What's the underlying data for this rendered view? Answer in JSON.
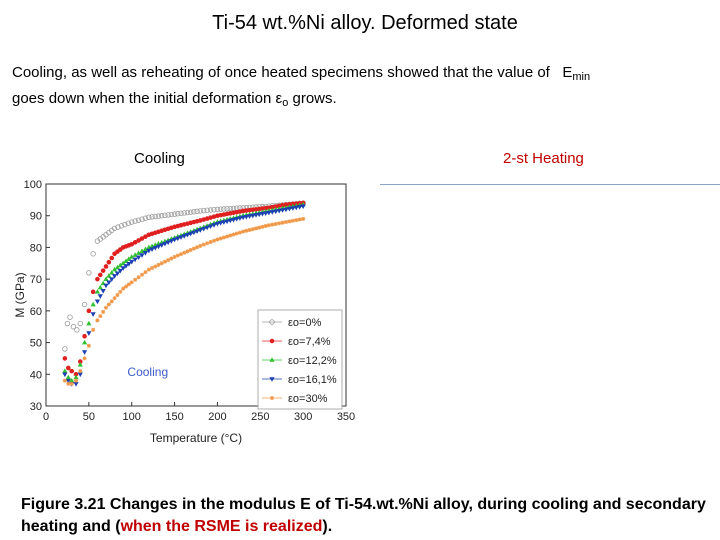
{
  "header": {
    "title": "Ti-54 wt.%Ni  alloy. Deformed  state"
  },
  "intro": {
    "line1_text": "Cooling, as well as reheating of once heated specimens  showed that the value of",
    "line1_symbol": "E",
    "line1_sub": "min",
    "line2_text": "goes down when the initial deformation",
    "line2_symbol": "ε",
    "line2_sub": "o",
    "line2_end": "grows."
  },
  "labels": {
    "cooling": "Cooling",
    "heating": "2-st Heating"
  },
  "caption": {
    "part1": "Figure 3.21 Changes in the modulus E of Ti-54.wt.%Ni alloy,  during cooling and secondary heating and (",
    "highlight": "when the RSME is realized",
    "part2": ")."
  },
  "colors": {
    "accent_red": "#c00000",
    "divider": "#8aa4c6"
  },
  "chart_data": {
    "type": "scatter",
    "title": "",
    "xlabel": "Temperature (°C)",
    "ylabel": "M (GPa)",
    "xlim": [
      0,
      350
    ],
    "ylim": [
      30,
      100
    ],
    "x_ticks": [
      "0",
      "50",
      "100",
      "150",
      "200",
      "250",
      "300",
      "350"
    ],
    "y_ticks": [
      "30",
      "40",
      "50",
      "60",
      "70",
      "80",
      "90",
      "100"
    ],
    "annotation": "Cooling",
    "legend_position": "bottom-right",
    "series": [
      {
        "name": "εo=0%",
        "legend_symbol": "εo",
        "legend_value": "=0%",
        "color": "#9a9a9a",
        "marker": "circle-open",
        "x": [
          22,
          25,
          28,
          32,
          36,
          40,
          45,
          50,
          55,
          60,
          70,
          80,
          100,
          120,
          150,
          180,
          200,
          230,
          260,
          280,
          300
        ],
        "y": [
          48,
          56,
          58,
          55,
          54,
          56,
          62,
          72,
          78,
          82,
          84,
          86,
          88,
          89.5,
          90.5,
          91.5,
          92,
          92.5,
          93,
          93.5,
          94
        ]
      },
      {
        "name": "εo=7,4%",
        "legend_symbol": "εo",
        "legend_value": "=7,4%",
        "color": "#e02020",
        "marker": "circle",
        "x": [
          22,
          26,
          30,
          35,
          40,
          45,
          50,
          55,
          60,
          70,
          80,
          90,
          100,
          120,
          150,
          180,
          200,
          230,
          260,
          280,
          300
        ],
        "y": [
          45,
          42,
          41,
          40,
          44,
          52,
          60,
          66,
          70,
          74,
          78,
          80,
          81,
          84,
          86.5,
          88.5,
          90,
          91.5,
          92.5,
          93.5,
          94
        ]
      },
      {
        "name": "εo=12,2%",
        "legend_symbol": "εo",
        "legend_value": "=12,2%",
        "color": "#30c030",
        "marker": "triangle-up",
        "x": [
          22,
          26,
          30,
          35,
          40,
          45,
          50,
          55,
          60,
          70,
          80,
          90,
          100,
          120,
          150,
          180,
          200,
          230,
          260,
          280,
          300
        ],
        "y": [
          41,
          39,
          38,
          39,
          43,
          50,
          56,
          62,
          66,
          70,
          73,
          75,
          77,
          80,
          83,
          86,
          88,
          90,
          91.5,
          92.5,
          93.5
        ]
      },
      {
        "name": "εo=16,1%",
        "legend_symbol": "εo",
        "legend_value": "=16,1%",
        "color": "#1c3fb4",
        "marker": "triangle-down",
        "x": [
          22,
          26,
          30,
          35,
          40,
          45,
          50,
          55,
          60,
          70,
          80,
          90,
          100,
          120,
          150,
          180,
          200,
          230,
          260,
          280,
          300
        ],
        "y": [
          40,
          38,
          37,
          37,
          40,
          47,
          53,
          59,
          63,
          68,
          71,
          73.5,
          75.5,
          79,
          82.5,
          85.5,
          87.5,
          89.5,
          91,
          92,
          93
        ]
      },
      {
        "name": "εo=30%",
        "legend_symbol": "εo",
        "legend_value": "=30%",
        "color": "#f09848",
        "marker": "star",
        "x": [
          22,
          26,
          30,
          35,
          40,
          45,
          50,
          55,
          60,
          70,
          80,
          90,
          100,
          120,
          150,
          180,
          200,
          230,
          260,
          280,
          300
        ],
        "y": [
          38,
          37,
          37,
          38,
          41,
          45,
          49,
          54,
          57,
          61,
          64,
          67,
          69,
          73,
          77,
          80.5,
          82.5,
          85,
          87,
          88,
          89
        ]
      }
    ]
  }
}
